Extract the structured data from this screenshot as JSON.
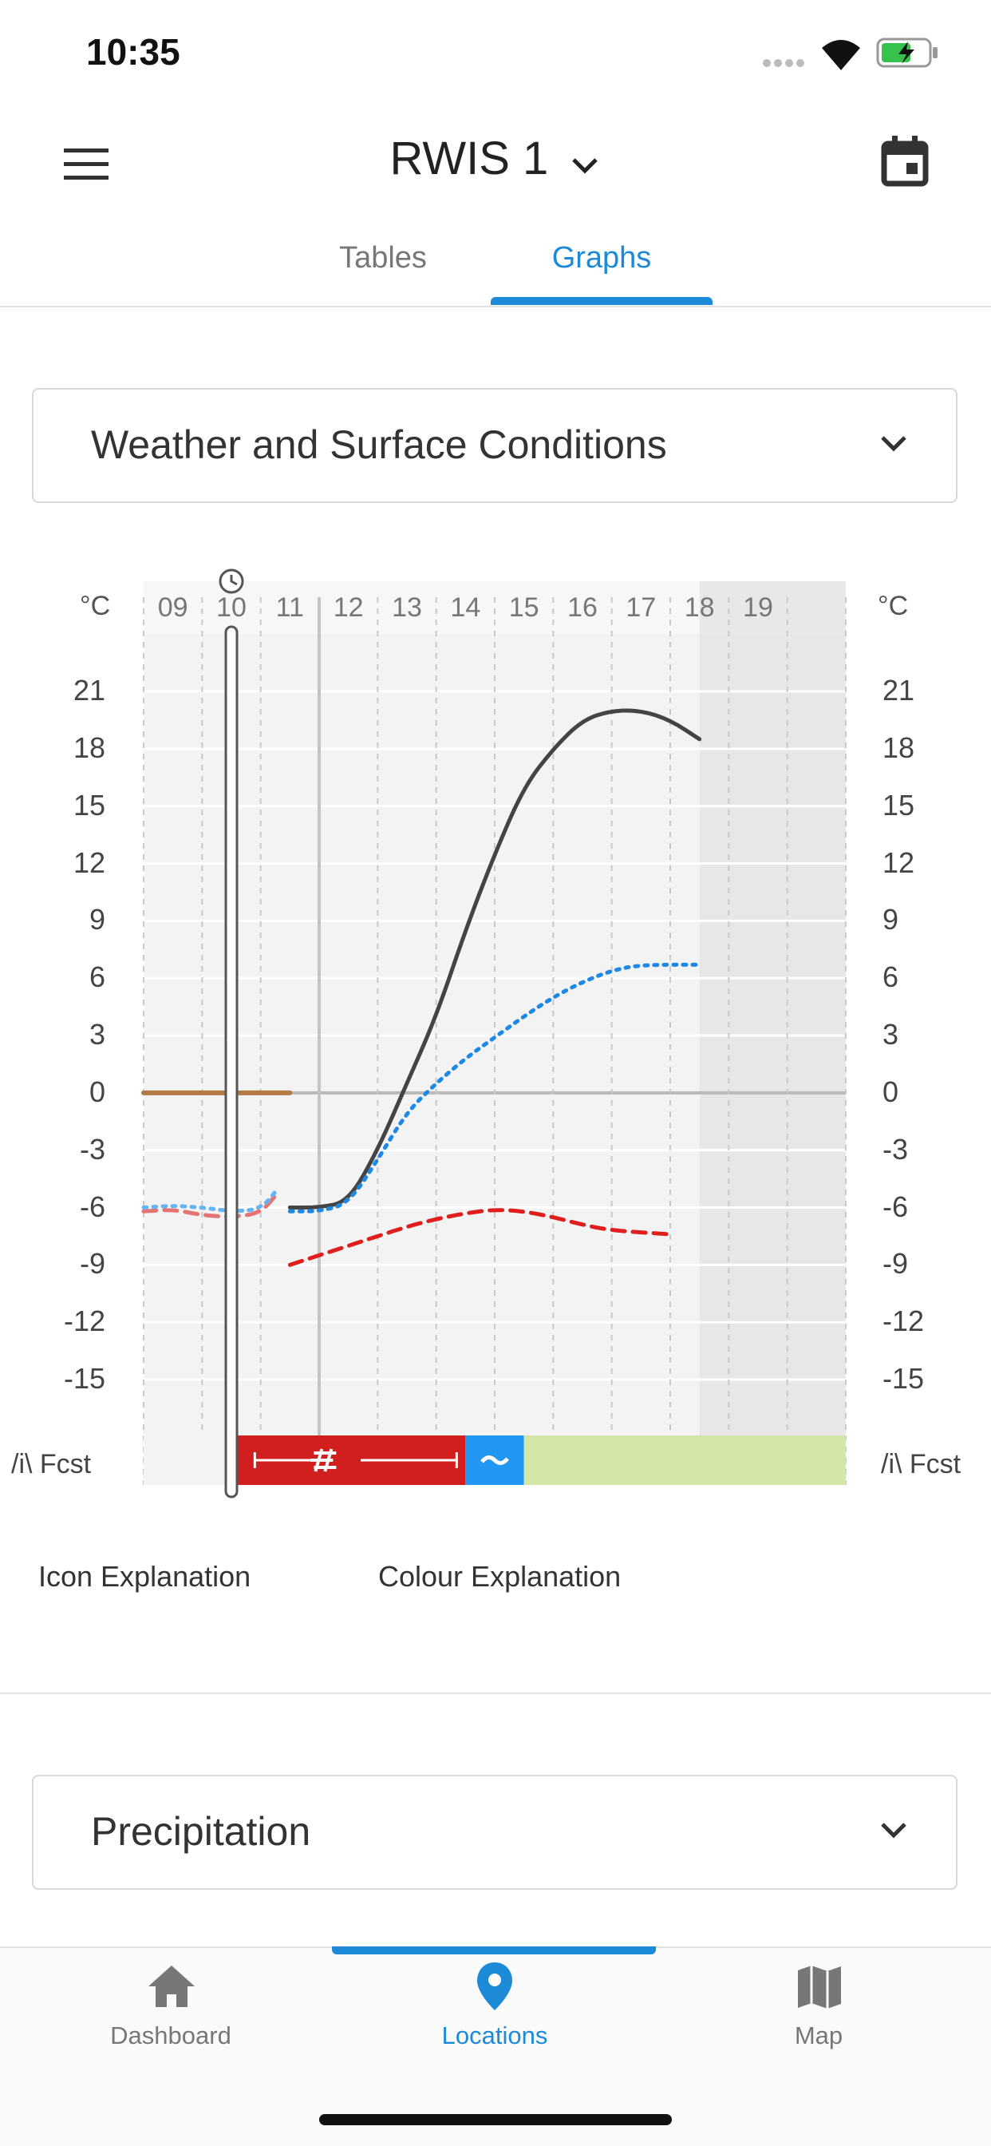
{
  "status": {
    "time": "10:35"
  },
  "header": {
    "title": "RWIS 1"
  },
  "tabs": [
    {
      "label": "Tables"
    },
    {
      "label": "Graphs"
    }
  ],
  "cards": {
    "weather": {
      "title": "Weather and Surface Conditions"
    },
    "precip": {
      "title": "Precipitation"
    }
  },
  "chart_data": {
    "type": "line",
    "title": "Weather and Surface Conditions",
    "ylabel": "°C",
    "ylim": [
      -18,
      24
    ],
    "y_ticks": [
      21,
      18,
      15,
      12,
      9,
      6,
      3,
      0,
      -3,
      -6,
      -9,
      -12,
      -15
    ],
    "x_tick_labels": [
      "09",
      "10",
      "11",
      "12",
      "13",
      "14",
      "15",
      "16",
      "17",
      "18",
      "19"
    ],
    "x_range_hours": [
      8,
      20
    ],
    "now_hour": 9.5,
    "series": [
      {
        "name": "air-temperature-forecast",
        "color": "#444444",
        "style": "solid",
        "points": [
          [
            10.5,
            -6
          ],
          [
            11,
            -6
          ],
          [
            11.5,
            -5.7
          ],
          [
            12,
            -3
          ],
          [
            12.5,
            0.5
          ],
          [
            13,
            4
          ],
          [
            13.5,
            8.5
          ],
          [
            14,
            12.5
          ],
          [
            14.5,
            16
          ],
          [
            15,
            18
          ],
          [
            15.5,
            19.5
          ],
          [
            16,
            20
          ],
          [
            16.5,
            20
          ],
          [
            17,
            19.5
          ],
          [
            17.5,
            18.5
          ]
        ]
      },
      {
        "name": "dew-point-forecast",
        "color": "#1e88e5",
        "style": "dotted",
        "points": [
          [
            10.5,
            -6.2
          ],
          [
            11,
            -6.2
          ],
          [
            11.5,
            -5.8
          ],
          [
            12,
            -3.5
          ],
          [
            12.5,
            -1
          ],
          [
            13,
            0.5
          ],
          [
            13.5,
            1.8
          ],
          [
            14,
            2.9
          ],
          [
            14.5,
            4
          ],
          [
            15,
            5
          ],
          [
            15.5,
            5.8
          ],
          [
            16,
            6.4
          ],
          [
            16.5,
            6.7
          ],
          [
            17.5,
            6.7
          ]
        ]
      },
      {
        "name": "surface-temperature-forecast",
        "color": "#e01e1e",
        "style": "dashed",
        "points": [
          [
            10.5,
            -9
          ],
          [
            11,
            -8.5
          ],
          [
            11.5,
            -8
          ],
          [
            12,
            -7.5
          ],
          [
            12.5,
            -7
          ],
          [
            13,
            -6.6
          ],
          [
            13.5,
            -6.3
          ],
          [
            14,
            -6.1
          ],
          [
            14.5,
            -6.2
          ],
          [
            15,
            -6.5
          ],
          [
            15.5,
            -6.9
          ],
          [
            16,
            -7.2
          ],
          [
            17,
            -7.4
          ]
        ]
      },
      {
        "name": "surface-temperature-observed",
        "color": "#e57373",
        "style": "dashed",
        "points": [
          [
            8,
            -6.2
          ],
          [
            8.5,
            -6.1
          ],
          [
            9,
            -6.4
          ],
          [
            9.5,
            -6.5
          ],
          [
            10,
            -6.3
          ],
          [
            10.3,
            -5.2
          ]
        ]
      },
      {
        "name": "dew-point-observed",
        "color": "#64b5f6",
        "style": "dotted",
        "points": [
          [
            8,
            -6
          ],
          [
            8.5,
            -5.9
          ],
          [
            9,
            -6
          ],
          [
            9.5,
            -6.2
          ],
          [
            10,
            -6.1
          ],
          [
            10.3,
            -5
          ]
        ]
      },
      {
        "name": "road-marker-zero",
        "color": "#b37a45",
        "style": "solid",
        "points": [
          [
            8,
            0
          ],
          [
            10.5,
            0
          ]
        ]
      }
    ],
    "condition_bar": {
      "label": "/i\\ Fcst",
      "segments": [
        {
          "from": 9.6,
          "to": 13.5,
          "color": "#d11f1f",
          "icon": "ice-road"
        },
        {
          "from": 13.5,
          "to": 14.5,
          "color": "#2196f3",
          "icon": "wet-road"
        },
        {
          "from": 14.5,
          "to": 20,
          "color": "#d4e6a8",
          "icon": ""
        }
      ]
    }
  },
  "explanations": {
    "icon": "Icon Explanation",
    "colour": "Colour Explanation"
  },
  "bottom_nav": [
    {
      "label": "Dashboard"
    },
    {
      "label": "Locations"
    },
    {
      "label": "Map"
    }
  ],
  "colors": {
    "accent": "#1c8ad6"
  }
}
